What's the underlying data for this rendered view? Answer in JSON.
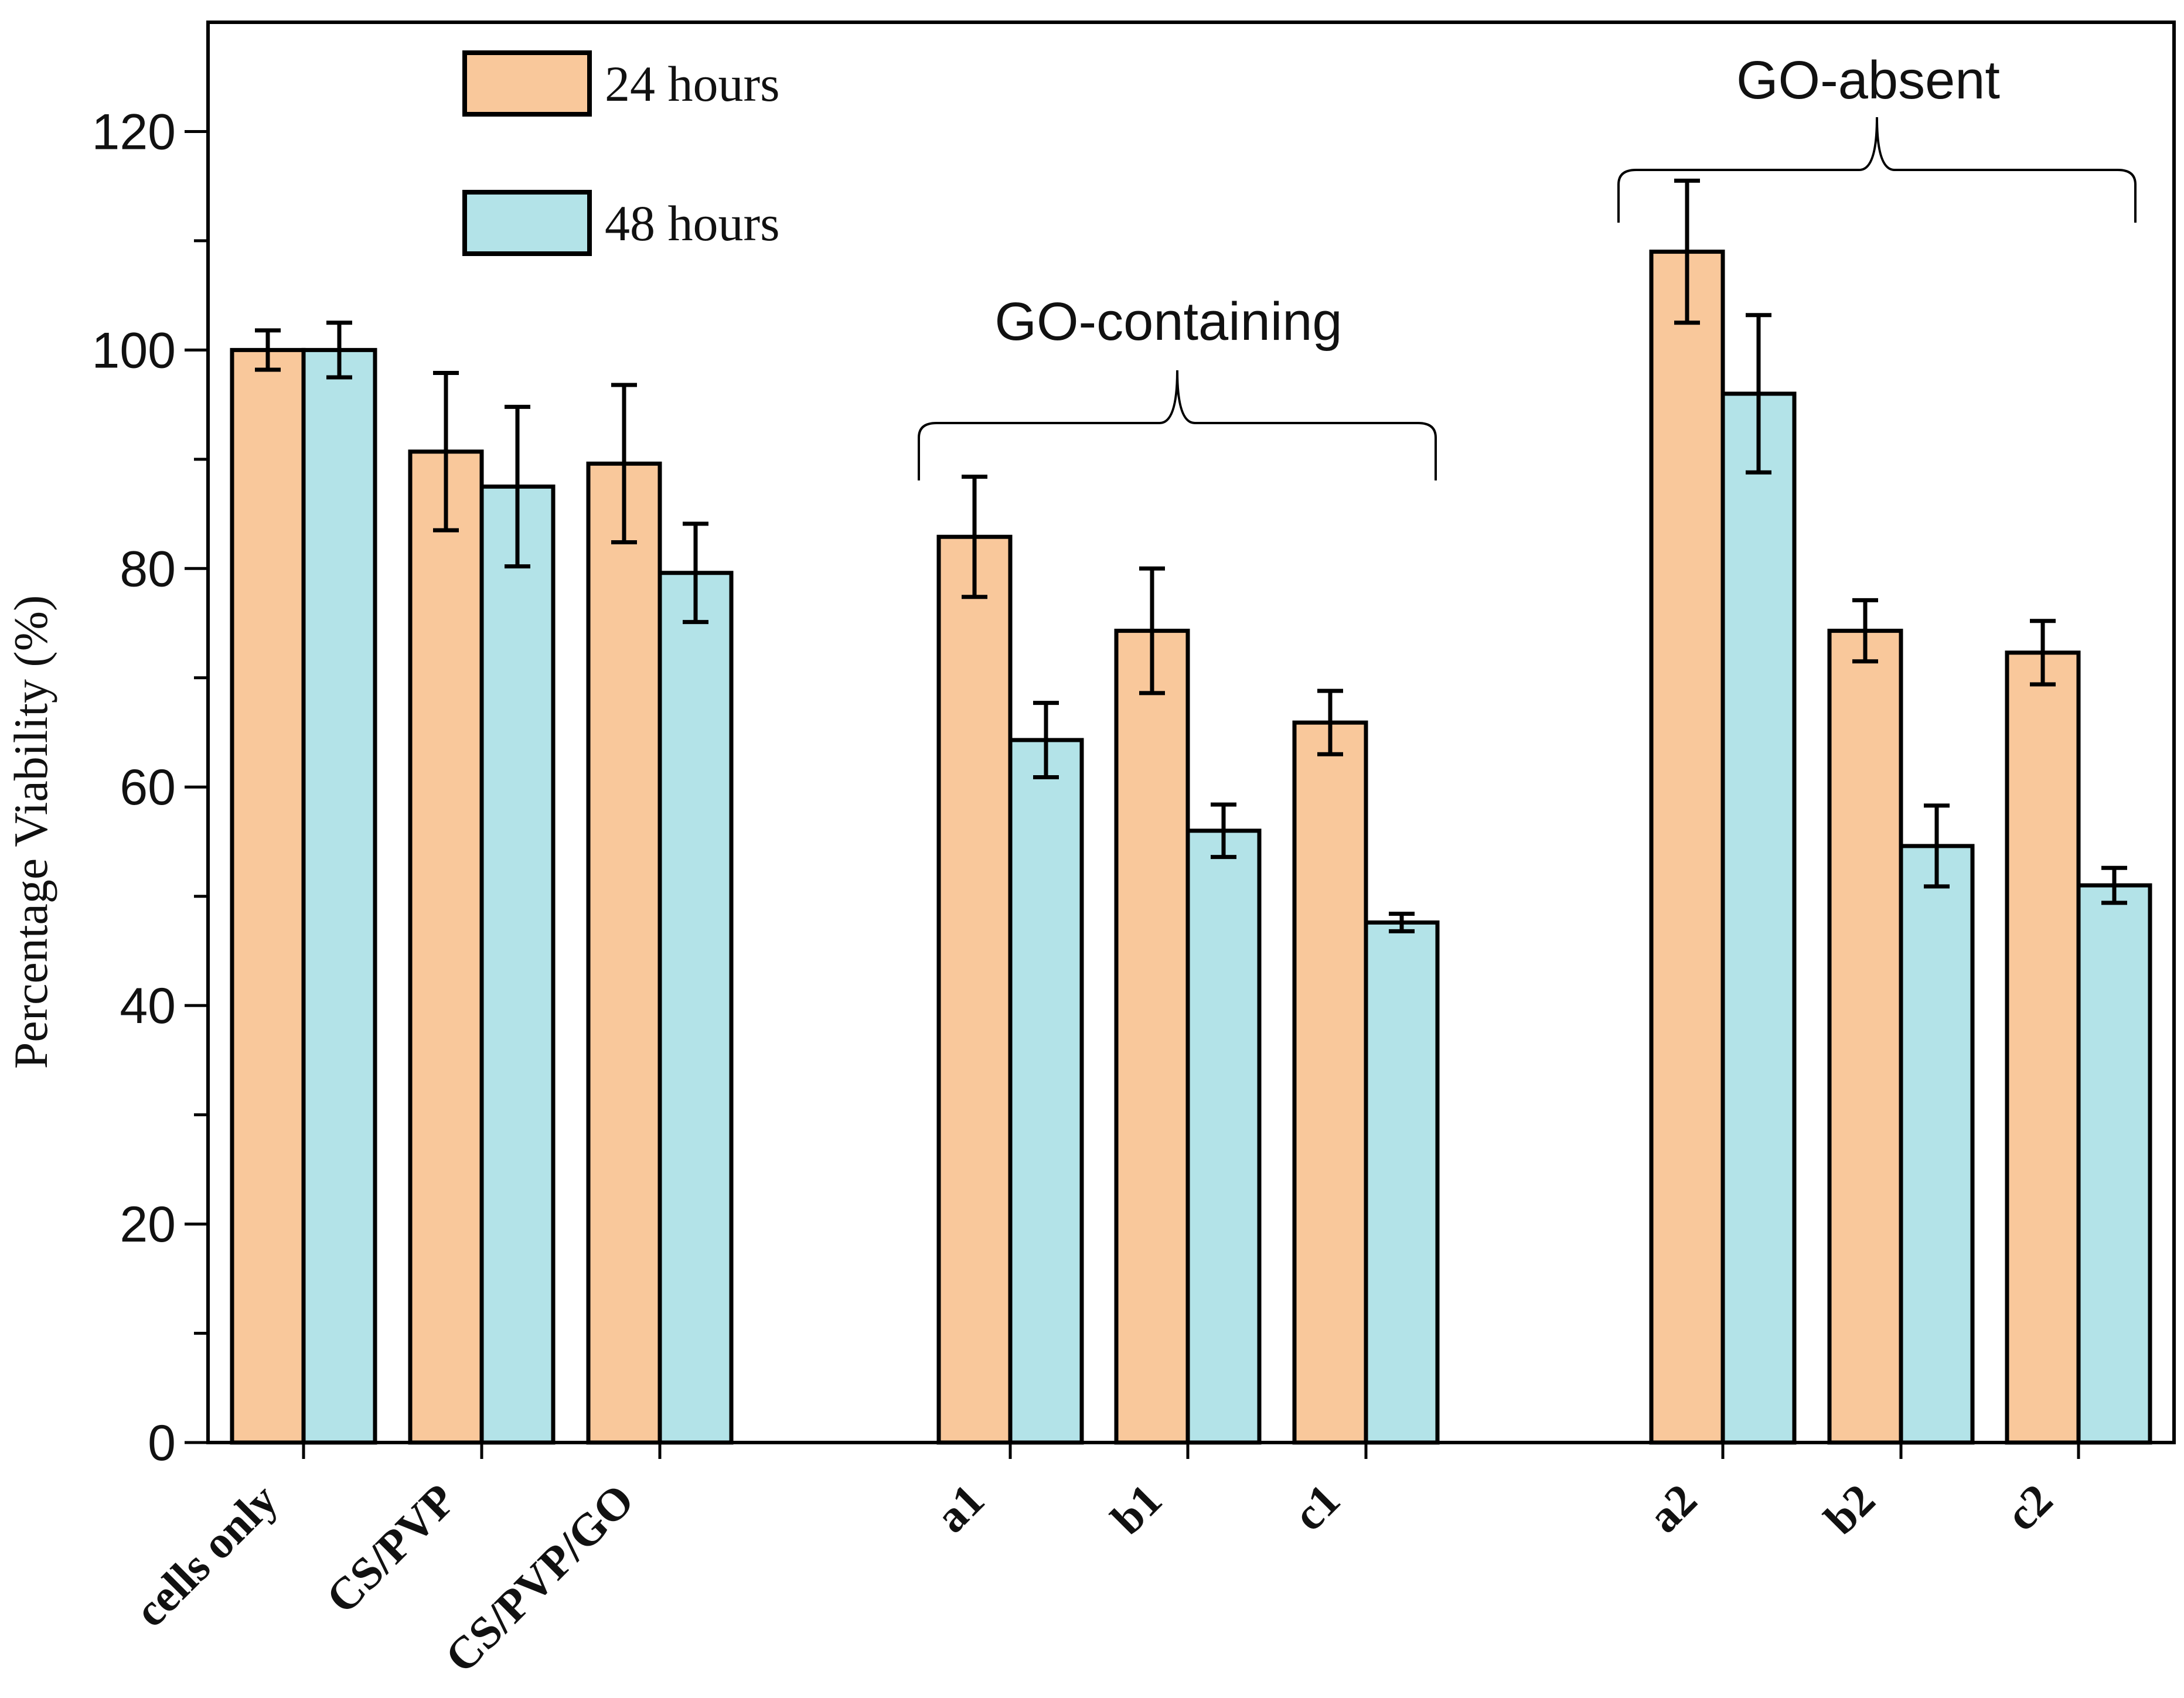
{
  "chart_data": {
    "type": "bar",
    "title": "",
    "xlabel": "",
    "ylabel": "Percentage Viability (%)",
    "ylim": [
      0,
      130
    ],
    "yticks": [
      0,
      20,
      40,
      60,
      80,
      100,
      120
    ],
    "categories": [
      "cells only",
      "CS/PVP",
      "CS/PVP/GO",
      "a1",
      "b1",
      "c1",
      "a2",
      "b2",
      "c2"
    ],
    "series": [
      {
        "name": "24 hours",
        "color": "#F9C89B",
        "values": [
          100,
          90.7,
          89.6,
          82.9,
          74.3,
          65.9,
          109,
          74.3,
          72.3
        ],
        "errors": [
          1.8,
          7.2,
          7.2,
          5.5,
          5.7,
          2.9,
          6.5,
          2.8,
          2.9
        ]
      },
      {
        "name": "48 hours",
        "color": "#B3E3E8",
        "values": [
          100,
          87.5,
          79.6,
          64.3,
          56.0,
          47.6,
          96.0,
          54.6,
          51.0
        ],
        "errors": [
          2.5,
          7.3,
          4.5,
          3.4,
          2.4,
          0.8,
          7.2,
          3.7,
          1.6
        ]
      }
    ],
    "legend_position": "top-left",
    "annotations": [
      {
        "text": "GO-containing",
        "spans": [
          "a1",
          "c1"
        ]
      },
      {
        "text": "GO-absent",
        "spans": [
          "a2",
          "c2"
        ]
      }
    ],
    "grid": false
  }
}
